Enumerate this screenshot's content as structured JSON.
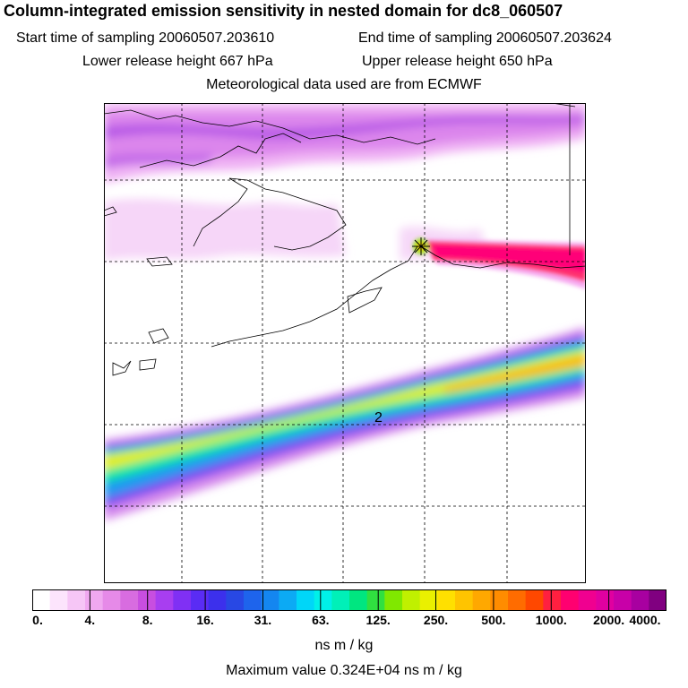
{
  "title": "Column-integrated emission sensitivity in nested domain for dc8_060507",
  "info": {
    "start_label": "Start time of sampling 20060507.203610",
    "end_label": "End time of sampling 20060507.203624",
    "lower_label": "Lower release height  667 hPa",
    "upper_label": "Upper release height  650 hPa",
    "met_label": "Meteorological data used are from ECMWF"
  },
  "map": {
    "contour_label": "2",
    "colors": {
      "land_outline": "#000000",
      "grid": "#000000"
    }
  },
  "colorbar": {
    "tick_labels": [
      "0.",
      "4.",
      "8.",
      "16.",
      "31.",
      "63.",
      "125.",
      "250.",
      "500.",
      "1000.",
      "2000.",
      "4000."
    ],
    "colors": [
      "#ffffff",
      "#fce4fc",
      "#f6c6f6",
      "#f0a8f0",
      "#e68ae8",
      "#d86ce0",
      "#c84ee0",
      "#a83ef0",
      "#8030f4",
      "#5a2cf4",
      "#3c30ec",
      "#2848e4",
      "#1e64ec",
      "#1486f0",
      "#0caaf4",
      "#00d6f8",
      "#00f0e8",
      "#00f0b8",
      "#00e680",
      "#30e040",
      "#80e800",
      "#c0f000",
      "#eaf000",
      "#ffe000",
      "#ffc400",
      "#ffa800",
      "#ff8c00",
      "#ff6c00",
      "#ff4800",
      "#ff2040",
      "#ff0070",
      "#f00090",
      "#e000a0",
      "#c800a8",
      "#a800a0",
      "#800080"
    ],
    "units": "ns m / kg"
  },
  "footer": {
    "max_label": "Maximum value  0.324E+04 ns m / kg"
  }
}
